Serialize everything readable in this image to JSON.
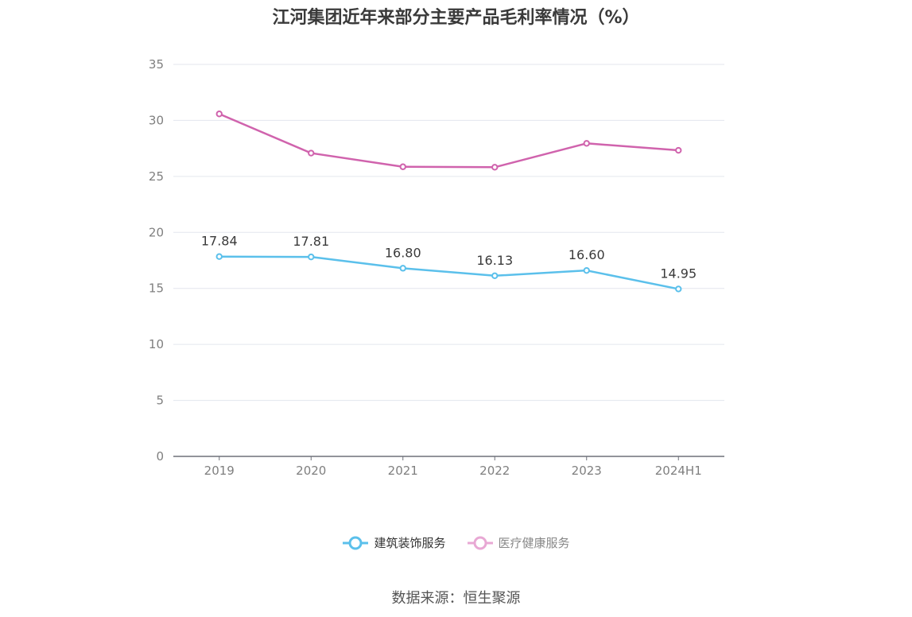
{
  "chart_data": {
    "type": "line",
    "title": "江河集团近年来部分主要产品毛利率情况（%）",
    "categories": [
      "2019",
      "2020",
      "2021",
      "2022",
      "2023",
      "2024H1"
    ],
    "ylim": [
      0,
      35
    ],
    "yticks": [
      0,
      5,
      10,
      15,
      20,
      25,
      30,
      35
    ],
    "grid": true,
    "legend_position": "bottom",
    "series": [
      {
        "name": "建筑装饰服务",
        "values": [
          17.84,
          17.81,
          16.8,
          16.13,
          16.6,
          14.95
        ],
        "labels": [
          "17.84",
          "17.81",
          "16.80",
          "16.13",
          "16.60",
          "14.95"
        ],
        "color": "#5bc0eb",
        "show_labels": true
      },
      {
        "name": "医疗健康服务",
        "values": [
          30.58,
          27.08,
          25.86,
          25.82,
          27.95,
          27.33
        ],
        "color": "#d063ad",
        "show_labels": false
      }
    ]
  },
  "legend": {
    "items": [
      {
        "label": "建筑装饰服务",
        "color": "#5bc0eb"
      },
      {
        "label": "医疗健康服务",
        "color": "#e8a8d4"
      }
    ]
  },
  "source": "数据来源：恒生聚源"
}
